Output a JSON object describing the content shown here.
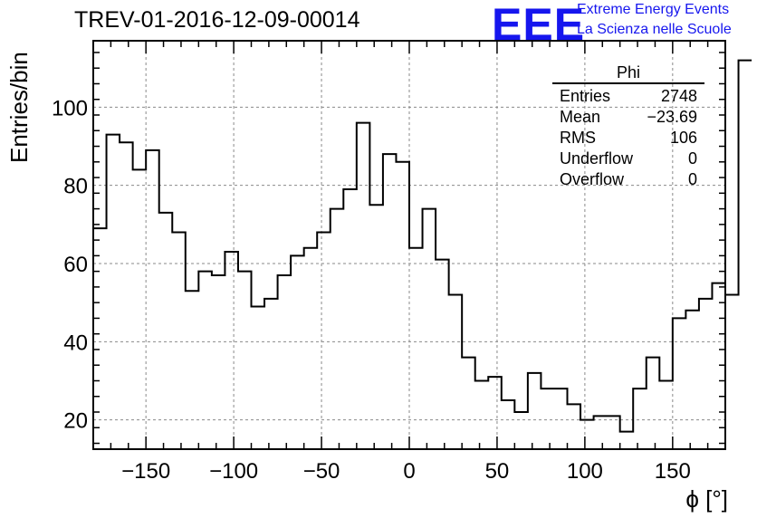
{
  "header": {
    "title": "TREV-01-2016-12-09-00014",
    "logo_text": "EEE",
    "logo_line1": "Extreme Energy Events",
    "logo_line2": "La Scienza nelle Scuole"
  },
  "stats_box": {
    "title": "Phi",
    "rows": [
      {
        "label": "Entries",
        "value": "2748"
      },
      {
        "label": "Mean",
        "value": "−23.69"
      },
      {
        "label": "RMS",
        "value": "106"
      },
      {
        "label": "Underflow",
        "value": "0"
      },
      {
        "label": "Overflow",
        "value": "0"
      }
    ]
  },
  "colors": {
    "logo": "#1616ee",
    "line": "#000000",
    "grid": "#8a8a8a"
  },
  "chart_data": {
    "type": "histogram",
    "title": "TREV-01-2016-12-09-00014",
    "xlabel": "ϕ [°]",
    "ylabel": "Entries/bin",
    "xlim": [
      -180,
      180
    ],
    "ylim": [
      12.5,
      117
    ],
    "xticks": [
      -150,
      -100,
      -50,
      0,
      50,
      100,
      150
    ],
    "xtick_labels": [
      "−150",
      "−100",
      "−50",
      "0",
      "50",
      "100",
      "150"
    ],
    "yticks": [
      20,
      40,
      60,
      80,
      100
    ],
    "grid": true,
    "bin_width": 7.5,
    "bin_edges_start": -180,
    "values": [
      69,
      93,
      91,
      84,
      89,
      73,
      68,
      53,
      58,
      57,
      63,
      58,
      49,
      51,
      57,
      62,
      64,
      68,
      74,
      79,
      96,
      75,
      88,
      86,
      64,
      74,
      61,
      52,
      36,
      30,
      31,
      25,
      22,
      32,
      28,
      28,
      24,
      20,
      21,
      21,
      17,
      28,
      36,
      30,
      46,
      48,
      51,
      55,
      52,
      112
    ]
  }
}
